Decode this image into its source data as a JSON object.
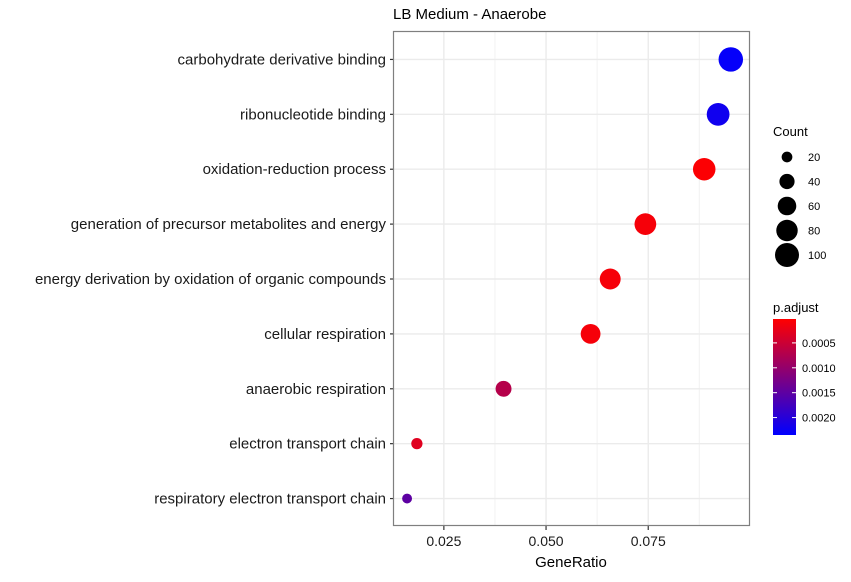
{
  "chart_data": {
    "type": "scatter",
    "title": "LB Medium - Anaerobe",
    "xlabel": "GeneRatio",
    "ylabel": "",
    "xlim": [
      0.0128,
      0.0999
    ],
    "xticks": [
      0.025,
      0.05,
      0.075
    ],
    "xtick_labels": [
      "0.025",
      "0.050",
      "0.075"
    ],
    "grid": true,
    "categories": [
      "carbohydrate derivative binding",
      "ribonucleotide binding",
      "oxidation-reduction process",
      "generation of precursor metabolites and energy",
      "energy derivation by oxidation of organic compounds",
      "cellular respiration",
      "anaerobic respiration",
      "electron transport chain",
      "respiratory electron transport chain"
    ],
    "points": [
      {
        "term": "carbohydrate derivative binding",
        "gene_ratio": 0.0952,
        "count": 104,
        "p_adjust": 0.0023
      },
      {
        "term": "ribonucleotide binding",
        "gene_ratio": 0.0921,
        "count": 90,
        "p_adjust": 0.0022
      },
      {
        "term": "oxidation-reduction process",
        "gene_ratio": 0.0887,
        "count": 88,
        "p_adjust": 5e-05
      },
      {
        "term": "generation of precursor metabolites and energy",
        "gene_ratio": 0.0743,
        "count": 82,
        "p_adjust": 0.0001
      },
      {
        "term": "energy derivation by oxidation of organic compounds",
        "gene_ratio": 0.0657,
        "count": 76,
        "p_adjust": 0.0001
      },
      {
        "term": "cellular respiration",
        "gene_ratio": 0.0609,
        "count": 68,
        "p_adjust": 0.0001
      },
      {
        "term": "anaerobic respiration",
        "gene_ratio": 0.0396,
        "count": 44,
        "p_adjust": 0.0007
      },
      {
        "term": "electron transport chain",
        "gene_ratio": 0.0184,
        "count": 22,
        "p_adjust": 0.0003
      },
      {
        "term": "respiratory electron transport chain",
        "gene_ratio": 0.016,
        "count": 17,
        "p_adjust": 0.0015
      }
    ],
    "size_legend": {
      "title": "Count",
      "values": [
        20,
        40,
        60,
        80,
        100
      ],
      "labels": [
        "20",
        "40",
        "60",
        "80",
        "100"
      ]
    },
    "color_legend": {
      "title": "p.adjust",
      "range": [
        2e-05,
        0.00235
      ],
      "ticks": [
        0.0005,
        0.001,
        0.0015,
        0.002
      ],
      "tick_labels": [
        "0.0005",
        "0.0010",
        "0.0015",
        "0.0020"
      ],
      "low_color": "#FF0000",
      "high_color": "#0000FF"
    },
    "legend_position": "right"
  }
}
